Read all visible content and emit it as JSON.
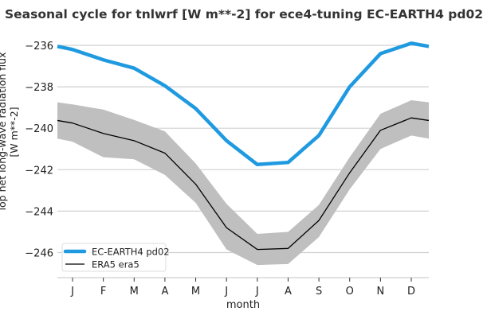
{
  "chart_data": {
    "type": "line",
    "title": "Seasonal cycle for tnlwrf [W m**-2] for ece4-tuning EC-EARTH4 pd02",
    "xlabel": "month",
    "ylabel": "Top net long-wave radiation flux [W m**-2]",
    "categories": [
      "J",
      "F",
      "M",
      "A",
      "M",
      "J",
      "J",
      "A",
      "S",
      "O",
      "N",
      "D"
    ],
    "ylim": [
      -246.9,
      -235.8
    ],
    "yticks": [
      -236,
      -238,
      -240,
      -242,
      -244,
      -246
    ],
    "grid": "horizontal",
    "legend_position": "bottom-left",
    "series": [
      {
        "name": "EC-EARTH4 pd02",
        "color": "#1f9ae0",
        "values": [
          -236.2,
          -236.7,
          -237.1,
          -237.95,
          -239.05,
          -240.6,
          -241.75,
          -241.65,
          -240.35,
          -238.0,
          -236.4,
          -235.9
        ]
      },
      {
        "name": "ERA5 era5",
        "color": "#000000",
        "values": [
          -239.75,
          -240.25,
          -240.6,
          -241.2,
          -242.7,
          -244.8,
          -245.85,
          -245.8,
          -244.45,
          -242.15,
          -240.1,
          -239.5
        ],
        "band_upper": [
          -238.85,
          -239.1,
          -239.6,
          -240.15,
          -241.7,
          -243.65,
          -245.1,
          -245.0,
          -243.7,
          -241.4,
          -239.3,
          -238.65
        ],
        "band_lower": [
          -240.65,
          -241.4,
          -241.5,
          -242.25,
          -243.6,
          -245.85,
          -246.6,
          -246.55,
          -245.25,
          -242.95,
          -241.0,
          -240.35
        ],
        "band_color": "#bfbfbf"
      }
    ]
  }
}
